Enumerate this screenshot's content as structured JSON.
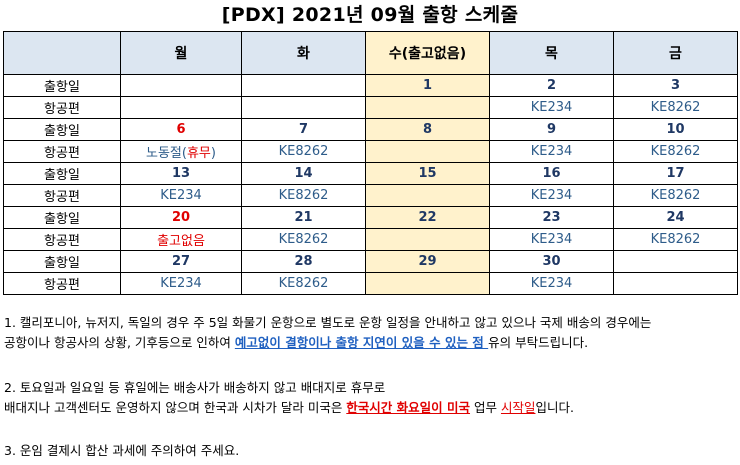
{
  "title": "[PDX] 2021년 09월 출항 스케줄",
  "headers": [
    "",
    "월",
    "화",
    "수(출고없음)",
    "목",
    "금"
  ],
  "rows": [
    {
      "label": "출항일",
      "type": "num",
      "cells": [
        "",
        "",
        "1",
        "2",
        "3"
      ]
    },
    {
      "label": "항공편",
      "type": "flt",
      "cells": [
        "",
        "",
        "",
        "KE234",
        "KE8262"
      ]
    },
    {
      "label": "출항일",
      "type": "num",
      "cells": [
        "6",
        "7",
        "8",
        "9",
        "10"
      ]
    },
    {
      "label": "항공편",
      "type": "flt",
      "cells": [
        "노동절(휴무)",
        "KE8262",
        "",
        "KE234",
        "KE8262"
      ]
    },
    {
      "label": "출항일",
      "type": "num",
      "cells": [
        "13",
        "14",
        "15",
        "16",
        "17"
      ]
    },
    {
      "label": "항공편",
      "type": "flt",
      "cells": [
        "KE234",
        "KE8262",
        "",
        "KE234",
        "KE8262"
      ]
    },
    {
      "label": "출항일",
      "type": "num",
      "cells": [
        "20",
        "21",
        "22",
        "23",
        "24"
      ]
    },
    {
      "label": "항공편",
      "type": "flt",
      "cells": [
        "출고없음",
        "KE8262",
        "",
        "KE234",
        "KE8262"
      ]
    },
    {
      "label": "출항일",
      "type": "num",
      "cells": [
        "27",
        "28",
        "29",
        "30",
        ""
      ]
    },
    {
      "label": "항공편",
      "type": "flt",
      "cells": [
        "KE234",
        "KE8262",
        "",
        "KE234",
        ""
      ]
    }
  ],
  "holiday": {
    "prefix": "노동절(",
    "word": "휴무",
    "suffix": ")"
  },
  "notes": {
    "n1_line1": "1. 캘리포니아, 뉴저지, 독일의 경우 주 5일 화물기 운항으로 별도로 운항 일정을 안내하고 않고 있으나 국제 배송의 경우에는",
    "n1_line2_pre": "공항이나 항공사의 상황, 기후등으로 인하여 ",
    "n1_line2_hl": "예고없이 결항이나 출항 지연이 있을 수 있는 점 ",
    "n1_line2_post": "유의 부탁드립니다.",
    "n2_line1": "2. 토요일과 일요일 등 휴일에는 배송사가 배송하지 않고 배대지로 휴무로",
    "n2_line2_pre": "배대지나 고객센터도 운영하지 않으며 한국과 시차가 달라 미국은 ",
    "n2_line2_hl": "한국시간 화요일이 미국",
    "n2_line2_mid1": " 업무 ",
    "n2_line2_red": "시작일",
    "n2_line2_post": "입니다.",
    "n3": "3. 운임 결제시 합산 과세에 주의하여 주세요."
  }
}
